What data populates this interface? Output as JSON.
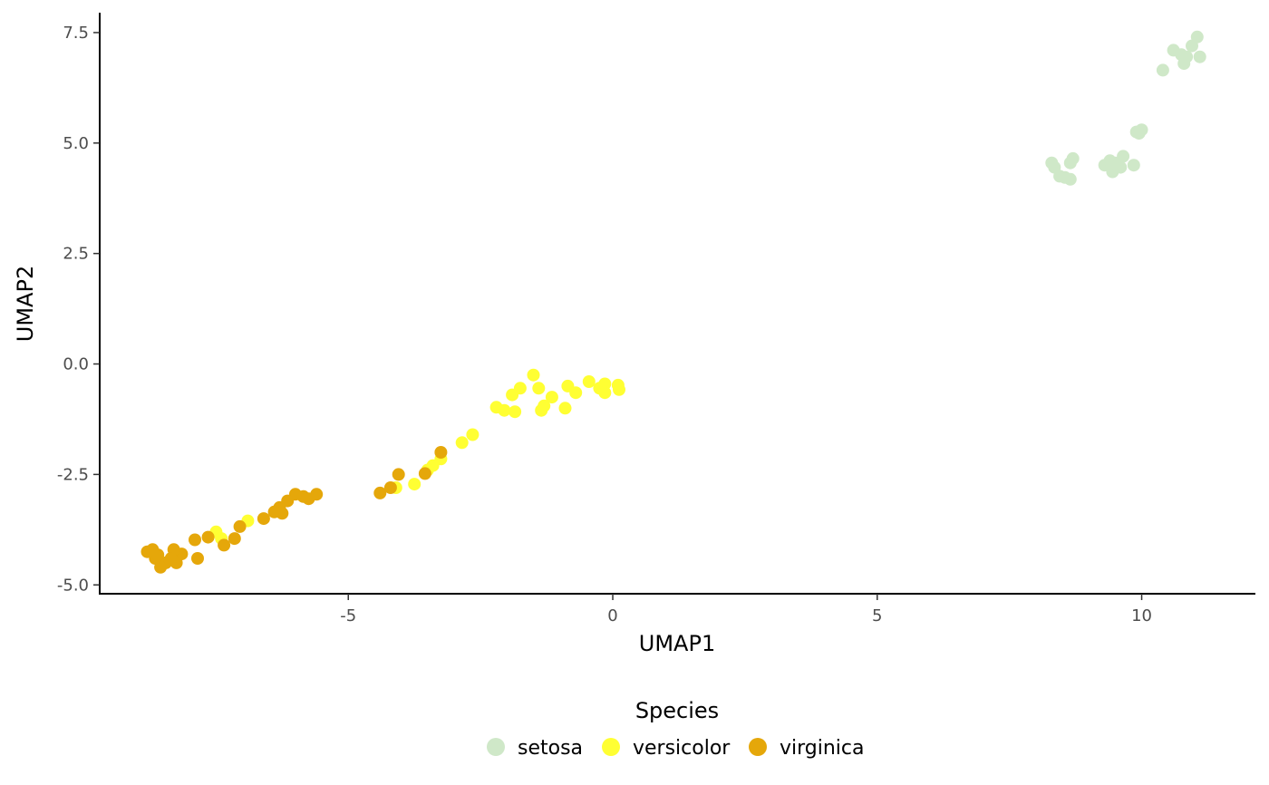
{
  "chart_data": {
    "type": "scatter",
    "xlabel": "UMAP1",
    "ylabel": "UMAP2",
    "xlim": [
      -9.7,
      12.15
    ],
    "ylim": [
      -5.2,
      7.95
    ],
    "x_ticks": [
      -5,
      0,
      5,
      10
    ],
    "x_tick_labels": [
      "-5",
      "0",
      "5",
      "10"
    ],
    "y_ticks": [
      -5.0,
      -2.5,
      0.0,
      2.5,
      5.0,
      7.5
    ],
    "y_tick_labels": [
      "-5.0",
      "-2.5",
      "0.0",
      "2.5",
      "5.0",
      "7.5"
    ],
    "grid": false,
    "legend": {
      "title": "Species",
      "placement": "bottom"
    },
    "series": [
      {
        "name": "setosa",
        "color": "#cfe8c8",
        "points": [
          [
            10.6,
            7.1
          ],
          [
            10.75,
            7.0
          ],
          [
            10.85,
            6.95
          ],
          [
            10.95,
            7.2
          ],
          [
            11.05,
            7.4
          ],
          [
            11.1,
            6.95
          ],
          [
            10.8,
            6.8
          ],
          [
            10.4,
            6.65
          ],
          [
            9.9,
            5.25
          ],
          [
            10.0,
            5.3
          ],
          [
            9.95,
            5.22
          ],
          [
            8.3,
            4.55
          ],
          [
            8.35,
            4.45
          ],
          [
            8.45,
            4.25
          ],
          [
            8.55,
            4.22
          ],
          [
            8.65,
            4.18
          ],
          [
            8.7,
            4.65
          ],
          [
            8.65,
            4.55
          ],
          [
            9.3,
            4.5
          ],
          [
            9.4,
            4.6
          ],
          [
            9.45,
            4.35
          ],
          [
            9.55,
            4.5
          ],
          [
            9.6,
            4.45
          ],
          [
            9.65,
            4.7
          ],
          [
            9.85,
            4.5
          ],
          [
            9.5,
            4.55
          ]
        ]
      },
      {
        "name": "versicolor",
        "color": "#ffff33",
        "points": [
          [
            -1.5,
            -0.25
          ],
          [
            -1.75,
            -0.55
          ],
          [
            -1.9,
            -0.7
          ],
          [
            -1.4,
            -0.55
          ],
          [
            -1.15,
            -0.75
          ],
          [
            -0.85,
            -0.5
          ],
          [
            -0.7,
            -0.65
          ],
          [
            -0.45,
            -0.4
          ],
          [
            -0.25,
            -0.55
          ],
          [
            -0.15,
            -0.45
          ],
          [
            -0.15,
            -0.65
          ],
          [
            0.1,
            -0.48
          ],
          [
            0.12,
            -0.58
          ],
          [
            -2.2,
            -0.98
          ],
          [
            -2.05,
            -1.05
          ],
          [
            -1.85,
            -1.08
          ],
          [
            -1.35,
            -1.05
          ],
          [
            -1.3,
            -0.95
          ],
          [
            -0.9,
            -1.0
          ],
          [
            -2.65,
            -1.6
          ],
          [
            -2.85,
            -1.78
          ],
          [
            -3.25,
            -2.15
          ],
          [
            -3.4,
            -2.3
          ],
          [
            -3.5,
            -2.4
          ],
          [
            -3.75,
            -2.72
          ],
          [
            -4.1,
            -2.8
          ],
          [
            -7.5,
            -3.8
          ],
          [
            -7.4,
            -3.95
          ],
          [
            -6.9,
            -3.55
          ]
        ]
      },
      {
        "name": "virginica",
        "color": "#e5a70a",
        "points": [
          [
            -3.25,
            -2.0
          ],
          [
            -4.05,
            -2.5
          ],
          [
            -3.55,
            -2.48
          ],
          [
            -4.2,
            -2.8
          ],
          [
            -4.4,
            -2.92
          ],
          [
            -5.6,
            -2.95
          ],
          [
            -5.75,
            -3.05
          ],
          [
            -5.85,
            -3.0
          ],
          [
            -6.0,
            -2.95
          ],
          [
            -6.15,
            -3.1
          ],
          [
            -6.3,
            -3.25
          ],
          [
            -6.25,
            -3.38
          ],
          [
            -6.4,
            -3.35
          ],
          [
            -6.6,
            -3.5
          ],
          [
            -7.05,
            -3.68
          ],
          [
            -7.15,
            -3.95
          ],
          [
            -7.35,
            -4.1
          ],
          [
            -7.65,
            -3.92
          ],
          [
            -7.9,
            -3.98
          ],
          [
            -7.85,
            -4.4
          ],
          [
            -8.15,
            -4.3
          ],
          [
            -8.25,
            -4.5
          ],
          [
            -8.3,
            -4.2
          ],
          [
            -8.35,
            -4.4
          ],
          [
            -8.45,
            -4.5
          ],
          [
            -8.55,
            -4.6
          ],
          [
            -8.65,
            -4.4
          ],
          [
            -8.7,
            -4.2
          ],
          [
            -8.8,
            -4.25
          ],
          [
            -8.6,
            -4.32
          ]
        ]
      }
    ]
  }
}
